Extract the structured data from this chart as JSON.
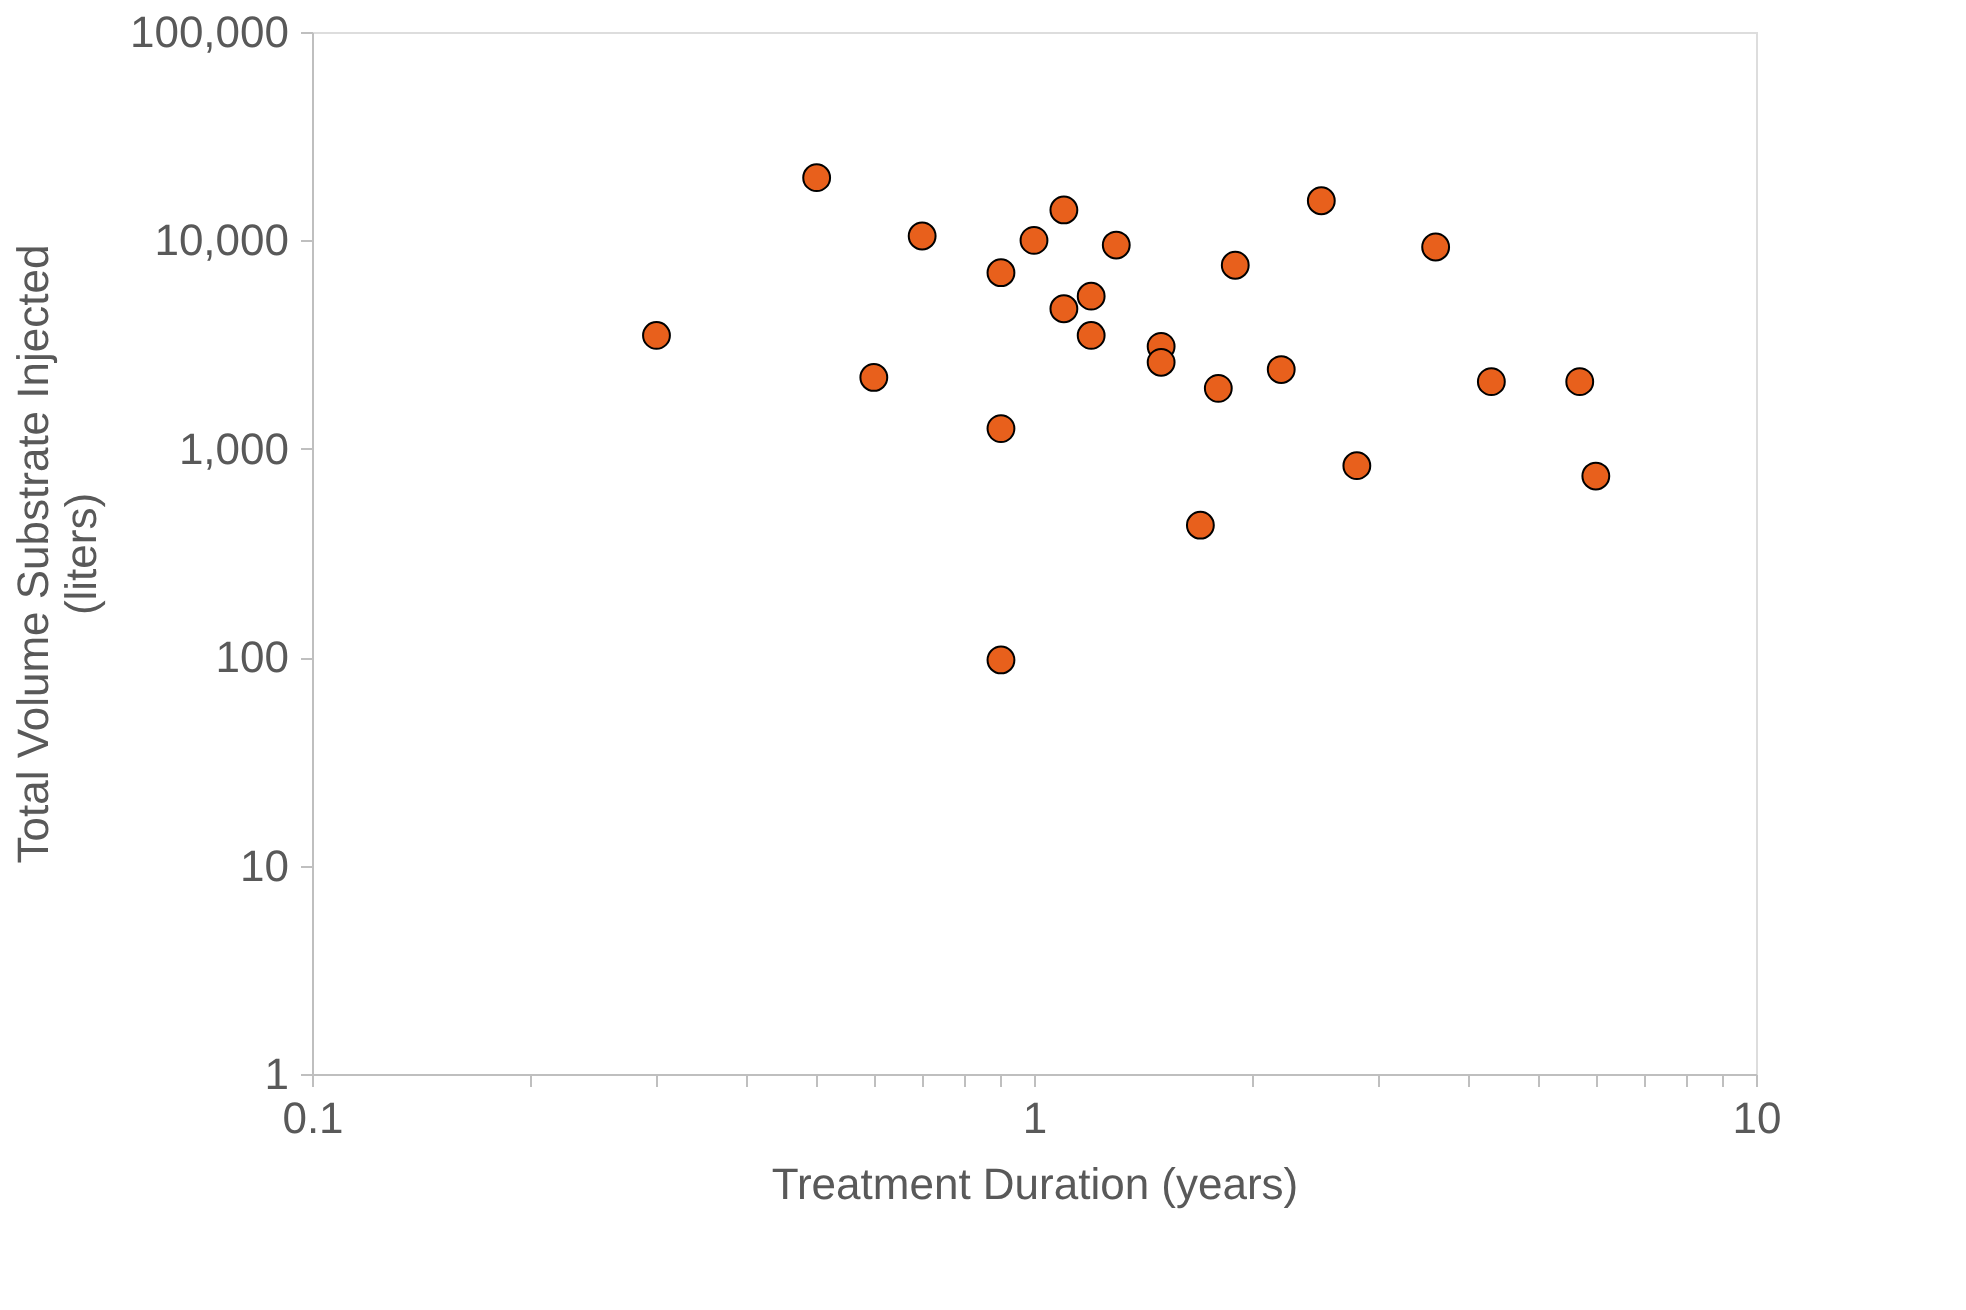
{
  "chart_data": {
    "type": "scatter",
    "xlabel": "Treatment Duration (years)",
    "ylabel": "Total Volume Substrate Injected\n(liters)",
    "log": "xy",
    "grid": false,
    "marker": "circle",
    "xlim": [
      0.1,
      10
    ],
    "ylim": [
      1,
      100000
    ],
    "xticks": [
      0.1,
      {
        "value": 0.2,
        "label": null
      },
      {
        "value": 0.3,
        "label": null
      },
      {
        "value": 0.4,
        "label": null
      },
      {
        "value": 0.5,
        "label": null
      },
      {
        "value": 0.6,
        "label": null
      },
      {
        "value": 0.7,
        "label": null
      },
      {
        "value": 0.8,
        "label": null
      },
      {
        "value": 0.9,
        "label": null
      },
      1,
      {
        "value": 2,
        "label": null
      },
      {
        "value": 3,
        "label": null
      },
      {
        "value": 4,
        "label": null
      },
      {
        "value": 5,
        "label": null
      },
      {
        "value": 6,
        "label": null
      },
      {
        "value": 7,
        "label": null
      },
      {
        "value": 8,
        "label": null
      },
      {
        "value": 9,
        "label": null
      },
      10
    ],
    "yticks": [
      1,
      10,
      100,
      {
        "value": 1000,
        "label": "1,000"
      },
      {
        "value": 10000,
        "label": "10,000"
      },
      {
        "value": 100000,
        "label": "100,000"
      }
    ],
    "x": [
      0.3,
      0.5,
      0.6,
      0.7,
      0.9,
      0.9,
      0.9,
      1.0,
      1.1,
      1.1,
      1.2,
      1.2,
      1.3,
      1.5,
      1.5,
      1.7,
      1.8,
      1.9,
      2.2,
      2.5,
      2.8,
      3.6,
      4.3,
      5.7,
      6.0
    ],
    "series": [
      {
        "color": "#e8601c",
        "values": [
          3500,
          20000,
          2200,
          10500,
          7000,
          1250,
          97,
          10000,
          14000,
          4700,
          5400,
          3500,
          9500,
          3100,
          2600,
          430,
          1950,
          7600,
          2400,
          15500,
          830,
          9300,
          2100,
          2100,
          740
        ]
      }
    ]
  }
}
